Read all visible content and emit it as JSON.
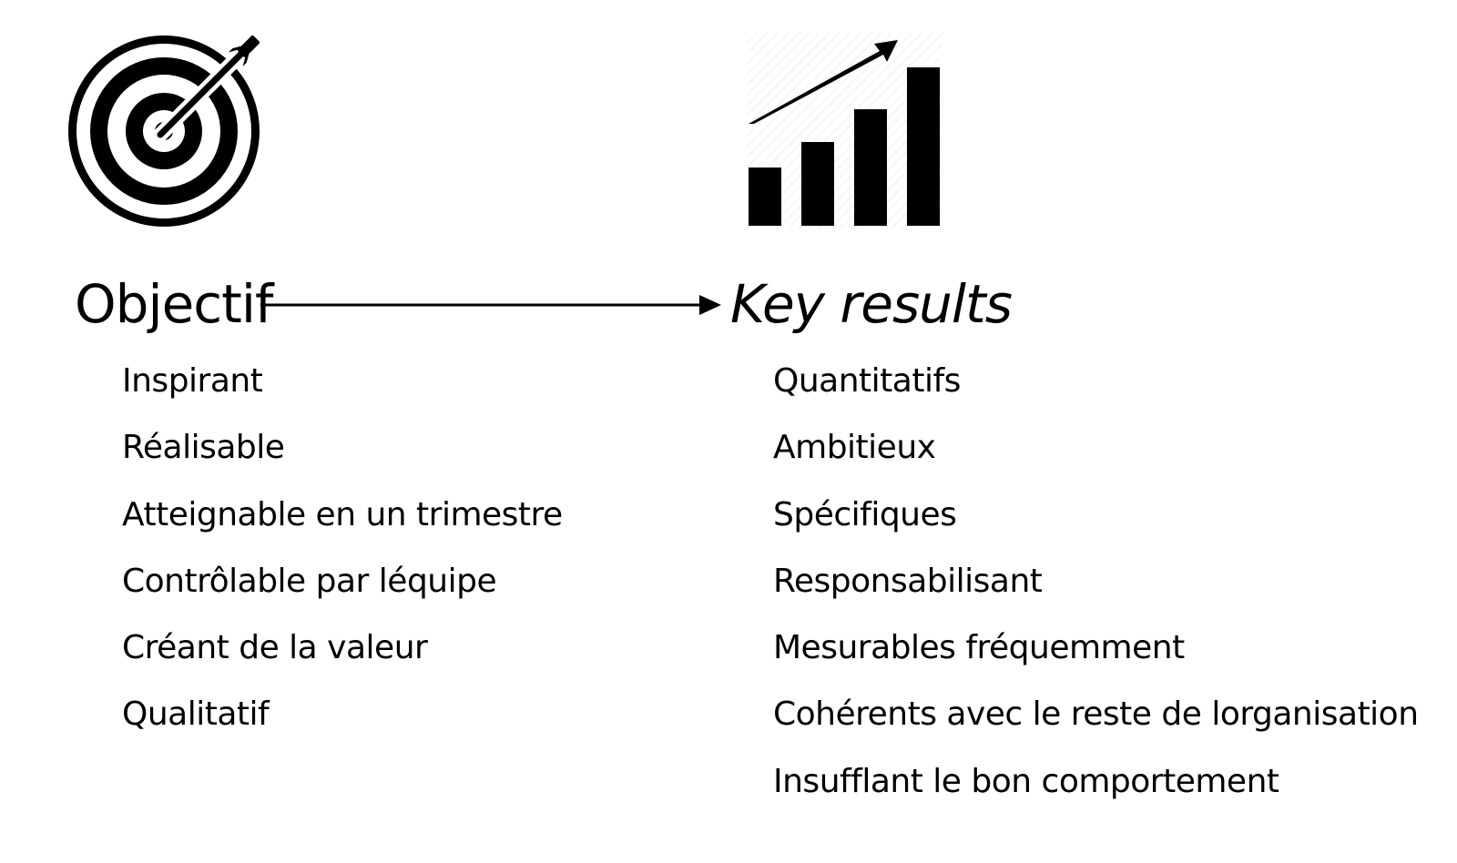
{
  "objective": {
    "title": "Objectif",
    "icon": "target-with-arrow-icon",
    "items": [
      "Inspirant",
      "Réalisable",
      "Atteignable en un trimestre",
      "Contrôlable par léquipe",
      "Créant de la valeur",
      "Qualitatif"
    ]
  },
  "key_results": {
    "title": "Key results",
    "icon": "growth-bar-chart-icon",
    "items": [
      "Quantitatifs",
      "Ambitieux",
      "Spécifiques",
      "Responsabilisant",
      "Mesurables fréquemment",
      "Cohérents avec le reste de lorganisation",
      "Insufflant le bon comportement"
    ]
  },
  "colors": {
    "ink": "#000000",
    "background": "#ffffff"
  }
}
